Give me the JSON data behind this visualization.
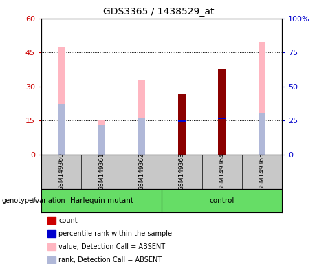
{
  "title": "GDS3365 / 1438529_at",
  "samples": [
    "GSM149360",
    "GSM149361",
    "GSM149362",
    "GSM149363",
    "GSM149364",
    "GSM149365"
  ],
  "pink_bars": [
    47.5,
    15.5,
    33.0,
    null,
    null,
    49.5
  ],
  "lightblue_bars": [
    22.0,
    13.0,
    16.0,
    null,
    null,
    18.0
  ],
  "darkred_bars": [
    null,
    null,
    null,
    27.0,
    37.5,
    null
  ],
  "blue_marks": [
    null,
    null,
    null,
    15.0,
    16.0,
    null
  ],
  "ylim_left": [
    0,
    60
  ],
  "ylim_right": [
    0,
    100
  ],
  "yticks_left": [
    0,
    15,
    30,
    45,
    60
  ],
  "yticks_right": [
    0,
    25,
    50,
    75,
    100
  ],
  "ytick_labels_left": [
    "0",
    "15",
    "30",
    "45",
    "60"
  ],
  "ytick_labels_right": [
    "0",
    "25",
    "50",
    "75",
    "100%"
  ],
  "hlines": [
    15,
    30,
    45
  ],
  "pink_color": "#FFB6C1",
  "lightblue_color": "#b0b8d8",
  "darkred_color": "#8B0000",
  "blue_color": "#0000CD",
  "left_tick_color": "#cc0000",
  "right_tick_color": "#0000cc",
  "bar_width": 0.18,
  "legend_items": [
    {
      "color": "#cc0000",
      "label": "count"
    },
    {
      "color": "#0000CD",
      "label": "percentile rank within the sample"
    },
    {
      "color": "#FFB6C1",
      "label": "value, Detection Call = ABSENT"
    },
    {
      "color": "#b0b8d8",
      "label": "rank, Detection Call = ABSENT"
    }
  ],
  "group_boundary": 3,
  "group1_label": "Harlequin mutant",
  "group2_label": "control",
  "genotype_label": "genotype/variation"
}
